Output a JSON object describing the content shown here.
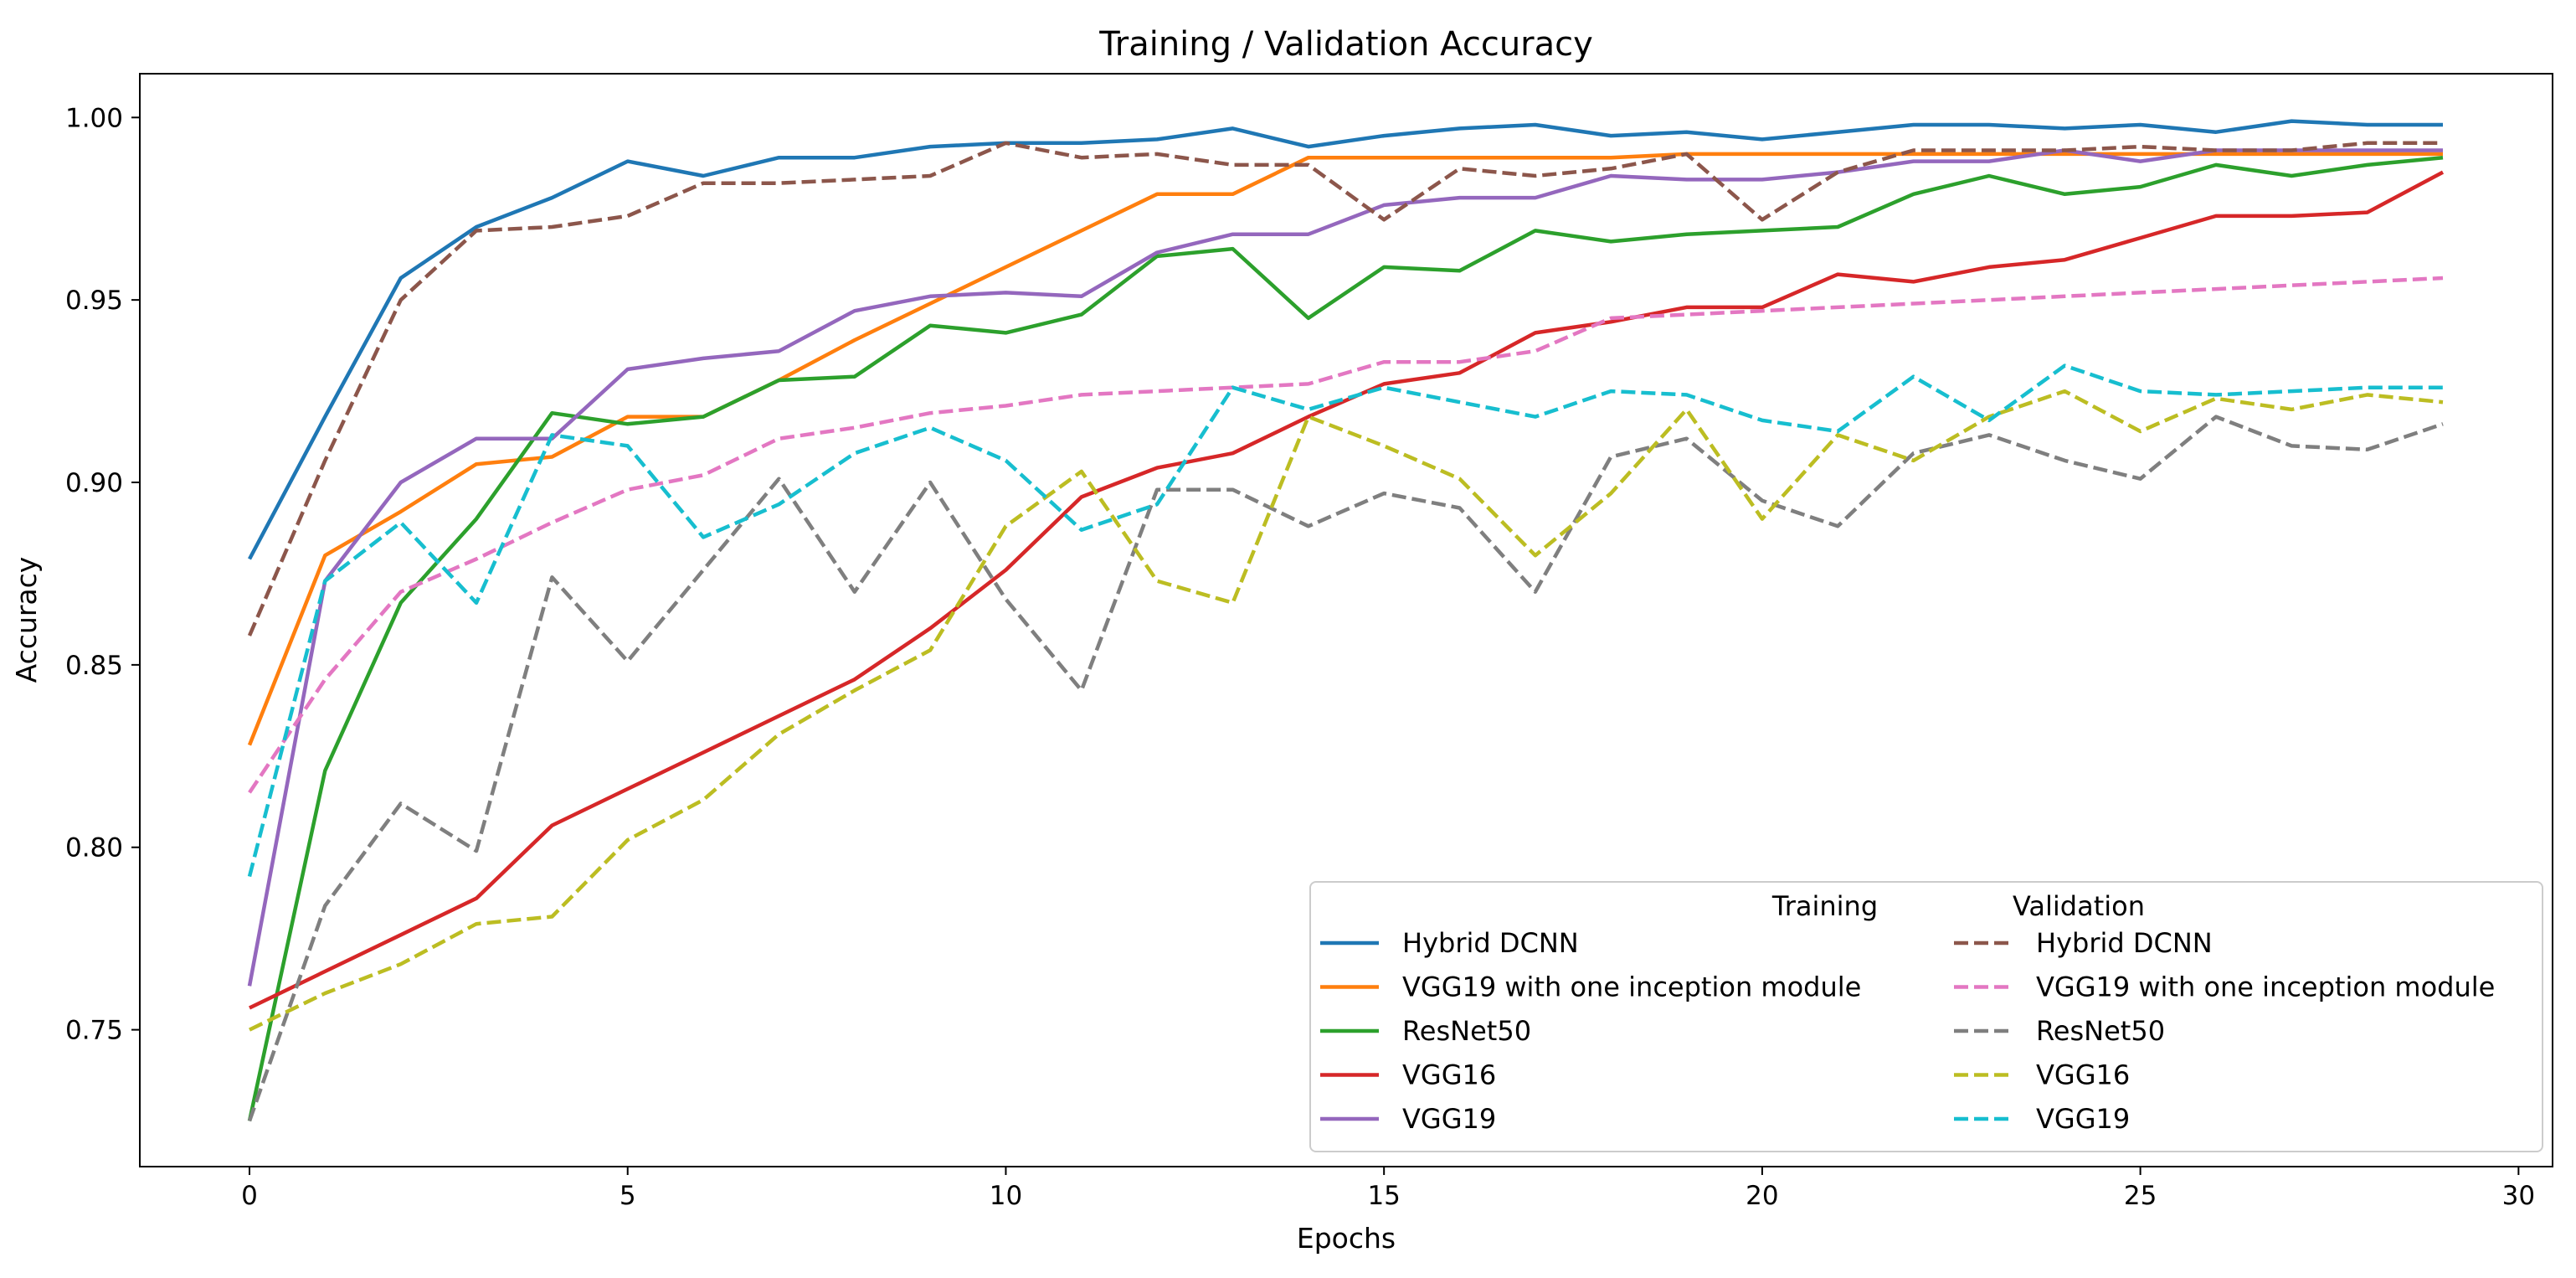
{
  "chart_data": {
    "type": "line",
    "title": "Training / Validation Accuracy",
    "xlabel": "Epochs",
    "ylabel": "Accuracy",
    "xlim": [
      -1.45,
      30.45
    ],
    "ylim": [
      0.7125,
      1.012
    ],
    "xticks": [
      0,
      5,
      10,
      15,
      20,
      25,
      30
    ],
    "yticks": [
      0.75,
      0.8,
      0.85,
      0.9,
      0.95,
      1.0
    ],
    "ytick_labels": [
      "0.75",
      "0.80",
      "0.85",
      "0.90",
      "0.95",
      "1.00"
    ],
    "grid": false,
    "legend": {
      "placement": "lower-right",
      "training_header": "Training",
      "validation_header": "Validation"
    },
    "x": [
      0,
      1,
      2,
      3,
      4,
      5,
      6,
      7,
      8,
      9,
      10,
      11,
      12,
      13,
      14,
      15,
      16,
      17,
      18,
      19,
      20,
      21,
      22,
      23,
      24,
      25,
      26,
      27,
      28,
      29
    ],
    "series": [
      {
        "name": "Hybrid DCNN",
        "group": "Training",
        "style": "solid",
        "color": "#1f77b4",
        "values": [
          0.879,
          0.918,
          0.956,
          0.97,
          0.978,
          0.988,
          0.984,
          0.989,
          0.989,
          0.992,
          0.993,
          0.993,
          0.994,
          0.997,
          0.992,
          0.995,
          0.997,
          0.998,
          0.995,
          0.996,
          0.994,
          0.996,
          0.998,
          0.998,
          0.997,
          0.998,
          0.996,
          0.999,
          0.998,
          0.998
        ]
      },
      {
        "name": "VGG19 with one inception module",
        "group": "Training",
        "style": "solid",
        "color": "#ff7f0e",
        "values": [
          0.828,
          0.88,
          0.892,
          0.905,
          0.907,
          0.918,
          0.918,
          0.928,
          0.939,
          0.949,
          0.959,
          0.969,
          0.979,
          0.979,
          0.989,
          0.989,
          0.989,
          0.989,
          0.989,
          0.99,
          0.99,
          0.99,
          0.99,
          0.99,
          0.99,
          0.99,
          0.99,
          0.99,
          0.99,
          0.99
        ]
      },
      {
        "name": "ResNet50",
        "group": "Training",
        "style": "solid",
        "color": "#2ca02c",
        "values": [
          0.725,
          0.821,
          0.867,
          0.89,
          0.919,
          0.916,
          0.918,
          0.928,
          0.929,
          0.943,
          0.941,
          0.946,
          0.962,
          0.964,
          0.945,
          0.959,
          0.958,
          0.969,
          0.966,
          0.968,
          0.969,
          0.97,
          0.979,
          0.984,
          0.979,
          0.981,
          0.987,
          0.984,
          0.987,
          0.989
        ]
      },
      {
        "name": "VGG16",
        "group": "Training",
        "style": "solid",
        "color": "#d62728",
        "values": [
          0.756,
          0.766,
          0.776,
          0.786,
          0.806,
          0.816,
          0.826,
          0.836,
          0.846,
          0.86,
          0.876,
          0.896,
          0.904,
          0.908,
          0.918,
          0.927,
          0.93,
          0.941,
          0.944,
          0.948,
          0.948,
          0.957,
          0.955,
          0.959,
          0.961,
          0.967,
          0.973,
          0.973,
          0.974,
          0.985
        ]
      },
      {
        "name": "VGG19",
        "group": "Training",
        "style": "solid",
        "color": "#9467bd",
        "values": [
          0.762,
          0.873,
          0.9,
          0.912,
          0.912,
          0.931,
          0.934,
          0.936,
          0.947,
          0.951,
          0.952,
          0.951,
          0.963,
          0.968,
          0.968,
          0.976,
          0.978,
          0.978,
          0.984,
          0.983,
          0.983,
          0.985,
          0.988,
          0.988,
          0.991,
          0.988,
          0.991,
          0.991,
          0.991,
          0.991
        ]
      },
      {
        "name": "Hybrid DCNN",
        "group": "Validation",
        "style": "dashed",
        "color": "#8c564b",
        "values": [
          0.858,
          0.906,
          0.95,
          0.969,
          0.97,
          0.973,
          0.982,
          0.982,
          0.983,
          0.984,
          0.993,
          0.989,
          0.99,
          0.987,
          0.987,
          0.972,
          0.986,
          0.984,
          0.986,
          0.99,
          0.972,
          0.985,
          0.991,
          0.991,
          0.991,
          0.992,
          0.991,
          0.991,
          0.993,
          0.993
        ]
      },
      {
        "name": "VGG19 with one inception module",
        "group": "Validation",
        "style": "dashed",
        "color": "#e377c2",
        "values": [
          0.815,
          0.846,
          0.87,
          0.879,
          0.889,
          0.898,
          0.902,
          0.912,
          0.915,
          0.919,
          0.921,
          0.924,
          0.925,
          0.926,
          0.927,
          0.933,
          0.933,
          0.936,
          0.945,
          0.946,
          0.947,
          0.948,
          0.949,
          0.95,
          0.951,
          0.952,
          0.953,
          0.954,
          0.955,
          0.956
        ]
      },
      {
        "name": "ResNet50",
        "group": "Validation",
        "style": "dashed",
        "color": "#7f7f7f",
        "values": [
          0.725,
          0.784,
          0.812,
          0.799,
          0.874,
          0.851,
          0.876,
          0.901,
          0.87,
          0.9,
          0.868,
          0.843,
          0.898,
          0.898,
          0.888,
          0.897,
          0.893,
          0.87,
          0.907,
          0.912,
          0.895,
          0.888,
          0.908,
          0.913,
          0.906,
          0.901,
          0.918,
          0.91,
          0.909,
          0.916
        ]
      },
      {
        "name": "VGG16",
        "group": "Validation",
        "style": "dashed",
        "color": "#bcbd22",
        "values": [
          0.75,
          0.76,
          0.768,
          0.779,
          0.781,
          0.802,
          0.813,
          0.831,
          0.843,
          0.854,
          0.888,
          0.903,
          0.873,
          0.867,
          0.918,
          0.91,
          0.901,
          0.88,
          0.897,
          0.92,
          0.89,
          0.913,
          0.906,
          0.918,
          0.925,
          0.914,
          0.923,
          0.92,
          0.924,
          0.922
        ]
      },
      {
        "name": "VGG19",
        "group": "Validation",
        "style": "dashed",
        "color": "#17becf",
        "values": [
          0.792,
          0.873,
          0.889,
          0.867,
          0.913,
          0.91,
          0.885,
          0.894,
          0.908,
          0.915,
          0.906,
          0.887,
          0.894,
          0.926,
          0.92,
          0.926,
          0.922,
          0.918,
          0.925,
          0.924,
          0.917,
          0.914,
          0.929,
          0.917,
          0.932,
          0.925,
          0.924,
          0.925,
          0.926,
          0.926
        ]
      }
    ]
  }
}
